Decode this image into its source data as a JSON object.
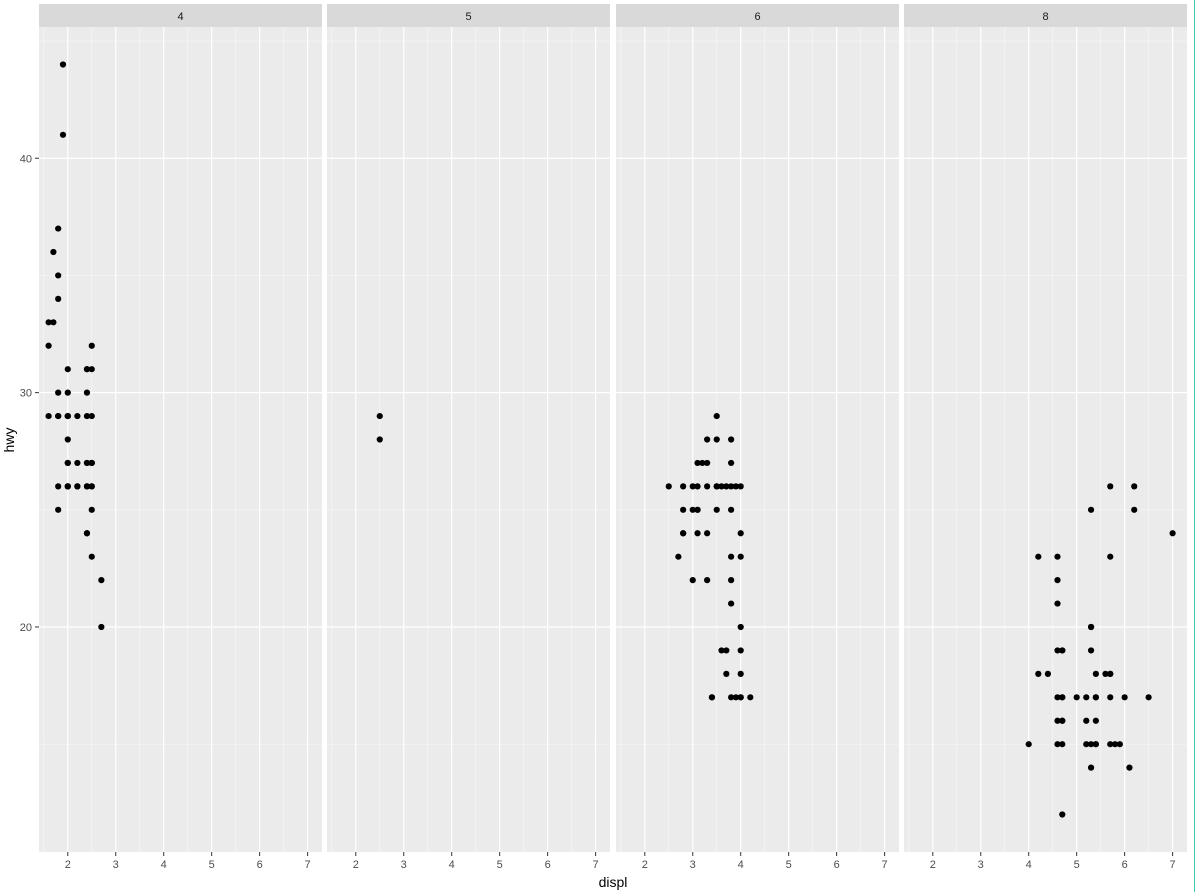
{
  "chart_data": {
    "type": "scatter",
    "xlabel": "displ",
    "ylabel": "hwy",
    "xlim": [
      1.4,
      7.3
    ],
    "ylim": [
      10.4,
      45.6
    ],
    "x_ticks": [
      2,
      3,
      4,
      5,
      6,
      7
    ],
    "y_ticks": [
      20,
      30,
      40
    ],
    "facet_variable_values": [
      "4",
      "5",
      "6",
      "8"
    ],
    "panels": [
      {
        "facet": "4",
        "points": [
          [
            1.8,
            29
          ],
          [
            1.8,
            29
          ],
          [
            2.0,
            31
          ],
          [
            2.0,
            30
          ],
          [
            2.4,
            26
          ],
          [
            2.4,
            29
          ],
          [
            2.0,
            28
          ],
          [
            2.0,
            26
          ],
          [
            2.0,
            29
          ],
          [
            2.0,
            26
          ],
          [
            2.2,
            26
          ],
          [
            2.4,
            27
          ],
          [
            2.4,
            30
          ],
          [
            2.5,
            26
          ],
          [
            2.5,
            29
          ],
          [
            2.4,
            24
          ],
          [
            2.5,
            26
          ],
          [
            2.4,
            24
          ],
          [
            2.7,
            20
          ],
          [
            2.7,
            22
          ],
          [
            2.4,
            31
          ],
          [
            2.5,
            32
          ],
          [
            2.5,
            27
          ],
          [
            2.5,
            25
          ],
          [
            2.2,
            27
          ],
          [
            2.5,
            23
          ],
          [
            2.0,
            29
          ],
          [
            2.0,
            27
          ],
          [
            2.2,
            29
          ],
          [
            2.2,
            26
          ],
          [
            2.5,
            31
          ],
          [
            2.5,
            27
          ],
          [
            2.4,
            26
          ],
          [
            2.4,
            27
          ],
          [
            1.8,
            26
          ],
          [
            1.8,
            25
          ],
          [
            1.6,
            33
          ],
          [
            1.6,
            32
          ],
          [
            1.6,
            29
          ],
          [
            1.7,
            36
          ],
          [
            1.8,
            35
          ],
          [
            1.8,
            37
          ],
          [
            1.8,
            34
          ],
          [
            1.7,
            33
          ],
          [
            1.8,
            30
          ],
          [
            1.9,
            44
          ],
          [
            1.9,
            41
          ],
          [
            2.0,
            29
          ],
          [
            2.0,
            26
          ],
          [
            2.0,
            27
          ],
          [
            2.4,
            31
          ],
          [
            2.5,
            27
          ]
        ]
      },
      {
        "facet": "5",
        "points": [
          [
            2.5,
            29
          ],
          [
            2.5,
            28
          ]
        ]
      },
      {
        "facet": "6",
        "points": [
          [
            2.8,
            26
          ],
          [
            2.8,
            24
          ],
          [
            3.1,
            27
          ],
          [
            3.1,
            26
          ],
          [
            2.8,
            25
          ],
          [
            3.0,
            25
          ],
          [
            3.1,
            25
          ],
          [
            2.5,
            26
          ],
          [
            2.8,
            24
          ],
          [
            3.1,
            24
          ],
          [
            3.3,
            24
          ],
          [
            3.8,
            22
          ],
          [
            3.8,
            21
          ],
          [
            3.8,
            23
          ],
          [
            3.3,
            22
          ],
          [
            3.8,
            17
          ],
          [
            3.5,
            26
          ],
          [
            3.4,
            17
          ],
          [
            3.4,
            17
          ],
          [
            4.0,
            17
          ],
          [
            3.6,
            19
          ],
          [
            4.0,
            18
          ],
          [
            4.0,
            19
          ],
          [
            4.0,
            17
          ],
          [
            4.2,
            17
          ],
          [
            3.7,
            18
          ],
          [
            3.7,
            19
          ],
          [
            3.9,
            17
          ],
          [
            3.0,
            22
          ],
          [
            2.7,
            23
          ],
          [
            3.3,
            27
          ],
          [
            3.5,
            28
          ],
          [
            3.3,
            28
          ],
          [
            3.5,
            29
          ],
          [
            3.6,
            26
          ],
          [
            3.8,
            27
          ],
          [
            4.0,
            26
          ],
          [
            3.8,
            28
          ],
          [
            3.3,
            26
          ],
          [
            4.0,
            23
          ],
          [
            4.0,
            20
          ],
          [
            4.0,
            24
          ],
          [
            3.5,
            26
          ],
          [
            3.5,
            25
          ],
          [
            3.7,
            26
          ],
          [
            3.8,
            25
          ],
          [
            3.0,
            26
          ],
          [
            3.2,
            27
          ],
          [
            3.1,
            25
          ],
          [
            3.8,
            26
          ],
          [
            3.9,
            26
          ]
        ]
      },
      {
        "facet": "8",
        "points": [
          [
            5.3,
            20
          ],
          [
            5.3,
            15
          ],
          [
            5.3,
            20
          ],
          [
            5.7,
            17
          ],
          [
            6.0,
            17
          ],
          [
            5.7,
            26
          ],
          [
            5.7,
            23
          ],
          [
            6.2,
            26
          ],
          [
            6.2,
            25
          ],
          [
            7.0,
            24
          ],
          [
            5.3,
            19
          ],
          [
            5.3,
            14
          ],
          [
            5.7,
            15
          ],
          [
            6.5,
            17
          ],
          [
            5.2,
            16
          ],
          [
            5.2,
            17
          ],
          [
            4.7,
            16
          ],
          [
            5.2,
            15
          ],
          [
            4.7,
            17
          ],
          [
            4.7,
            12
          ],
          [
            4.7,
            15
          ],
          [
            4.6,
            17
          ],
          [
            4.7,
            19
          ],
          [
            5.4,
            17
          ],
          [
            4.7,
            19
          ],
          [
            5.4,
            16
          ],
          [
            5.7,
            18
          ],
          [
            6.1,
            14
          ],
          [
            5.4,
            18
          ],
          [
            5.4,
            15
          ],
          [
            4.6,
            22
          ],
          [
            4.6,
            21
          ],
          [
            4.6,
            23
          ],
          [
            4.6,
            19
          ],
          [
            4.6,
            16
          ],
          [
            5.0,
            17
          ],
          [
            4.2,
            18
          ],
          [
            4.4,
            18
          ],
          [
            4.0,
            15
          ],
          [
            4.7,
            17
          ],
          [
            5.4,
            15
          ],
          [
            5.6,
            18
          ],
          [
            5.7,
            18
          ],
          [
            5.8,
            15
          ],
          [
            4.7,
            16
          ],
          [
            5.4,
            17
          ],
          [
            4.2,
            23
          ],
          [
            4.6,
            15
          ],
          [
            5.3,
            25
          ],
          [
            5.9,
            15
          ]
        ]
      }
    ]
  }
}
